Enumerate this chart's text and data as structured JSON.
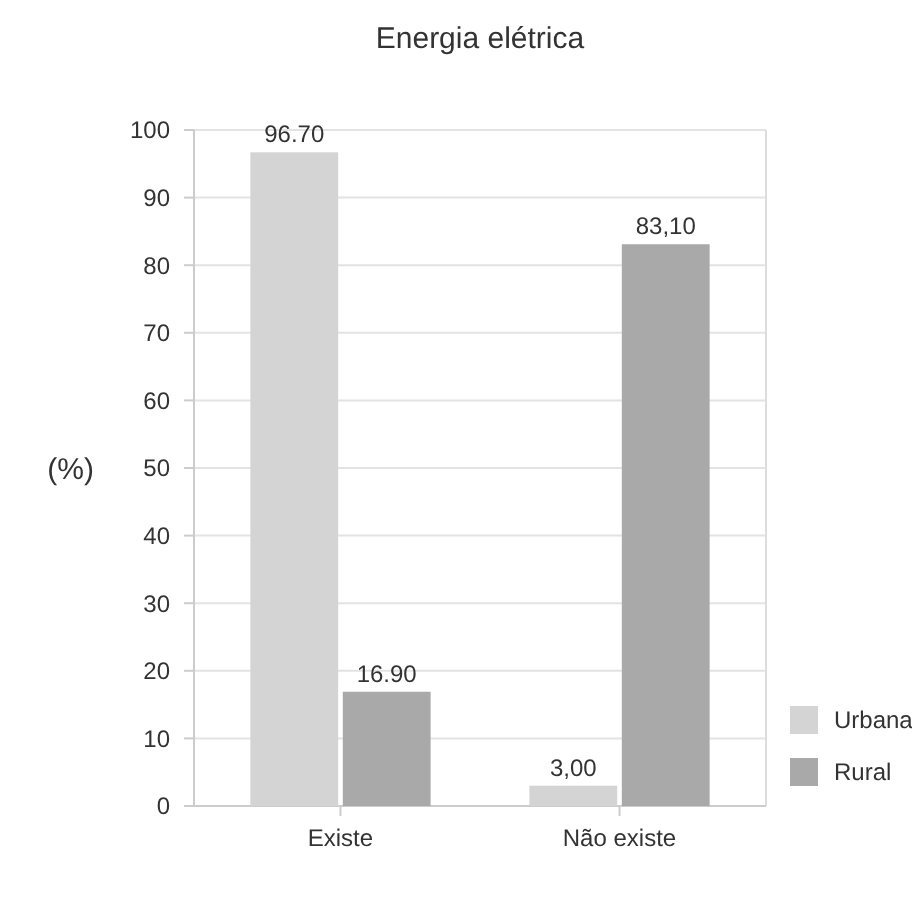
{
  "chart_data": {
    "type": "bar",
    "title": "Energia elétrica",
    "ylabel": "(%)",
    "categories": [
      "Existe",
      "Não existe"
    ],
    "series": [
      {
        "name": "Urbana",
        "color": "#d4d4d4",
        "values": [
          96.7,
          3.0
        ],
        "value_labels": [
          "96.70",
          "3,00"
        ]
      },
      {
        "name": "Rural",
        "color": "#a9a9a9",
        "values": [
          16.9,
          83.1
        ],
        "value_labels": [
          "16.90",
          "83,10"
        ]
      }
    ],
    "ylim": [
      0,
      100
    ],
    "yticks": [
      0,
      10,
      20,
      30,
      40,
      50,
      60,
      70,
      80,
      90,
      100
    ],
    "grid": "y",
    "legend": "bottom right"
  }
}
